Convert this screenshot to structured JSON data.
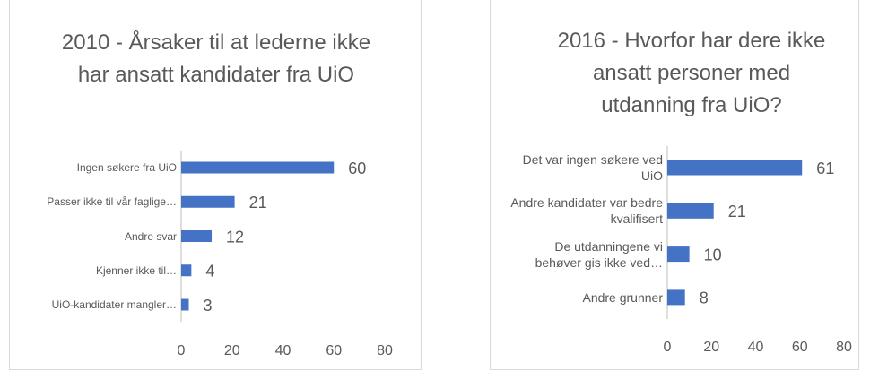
{
  "chart_data": [
    {
      "type": "bar",
      "orientation": "horizontal",
      "title": "2010 - Årsaker til at lederne ikke har ansatt kandidater fra UiO",
      "categories": [
        "Ingen søkere fra UiO",
        "Passer ikke til vår faglige…",
        "Andre svar",
        "Kjenner ikke til…",
        "UiO-kandidater mangler…"
      ],
      "values": [
        60,
        21,
        12,
        4,
        3
      ],
      "color": "#4472c4",
      "xlim": [
        0,
        80
      ],
      "xticks": [
        0,
        20,
        40,
        60,
        80
      ],
      "grid": false
    },
    {
      "type": "bar",
      "orientation": "horizontal",
      "title": "2016 - Hvorfor har dere ikke ansatt personer med utdanning fra UiO?",
      "categories": [
        "Det var ingen søkere ved UiO",
        "Andre kandidater var bedre kvalifisert",
        "De utdanningene vi behøver gis ikke ved…",
        "Andre grunner"
      ],
      "values": [
        61,
        21,
        10,
        8
      ],
      "color": "#4472c4",
      "xlim": [
        0,
        80
      ],
      "xticks": [
        0,
        20,
        40,
        60,
        80
      ],
      "grid": false
    }
  ]
}
